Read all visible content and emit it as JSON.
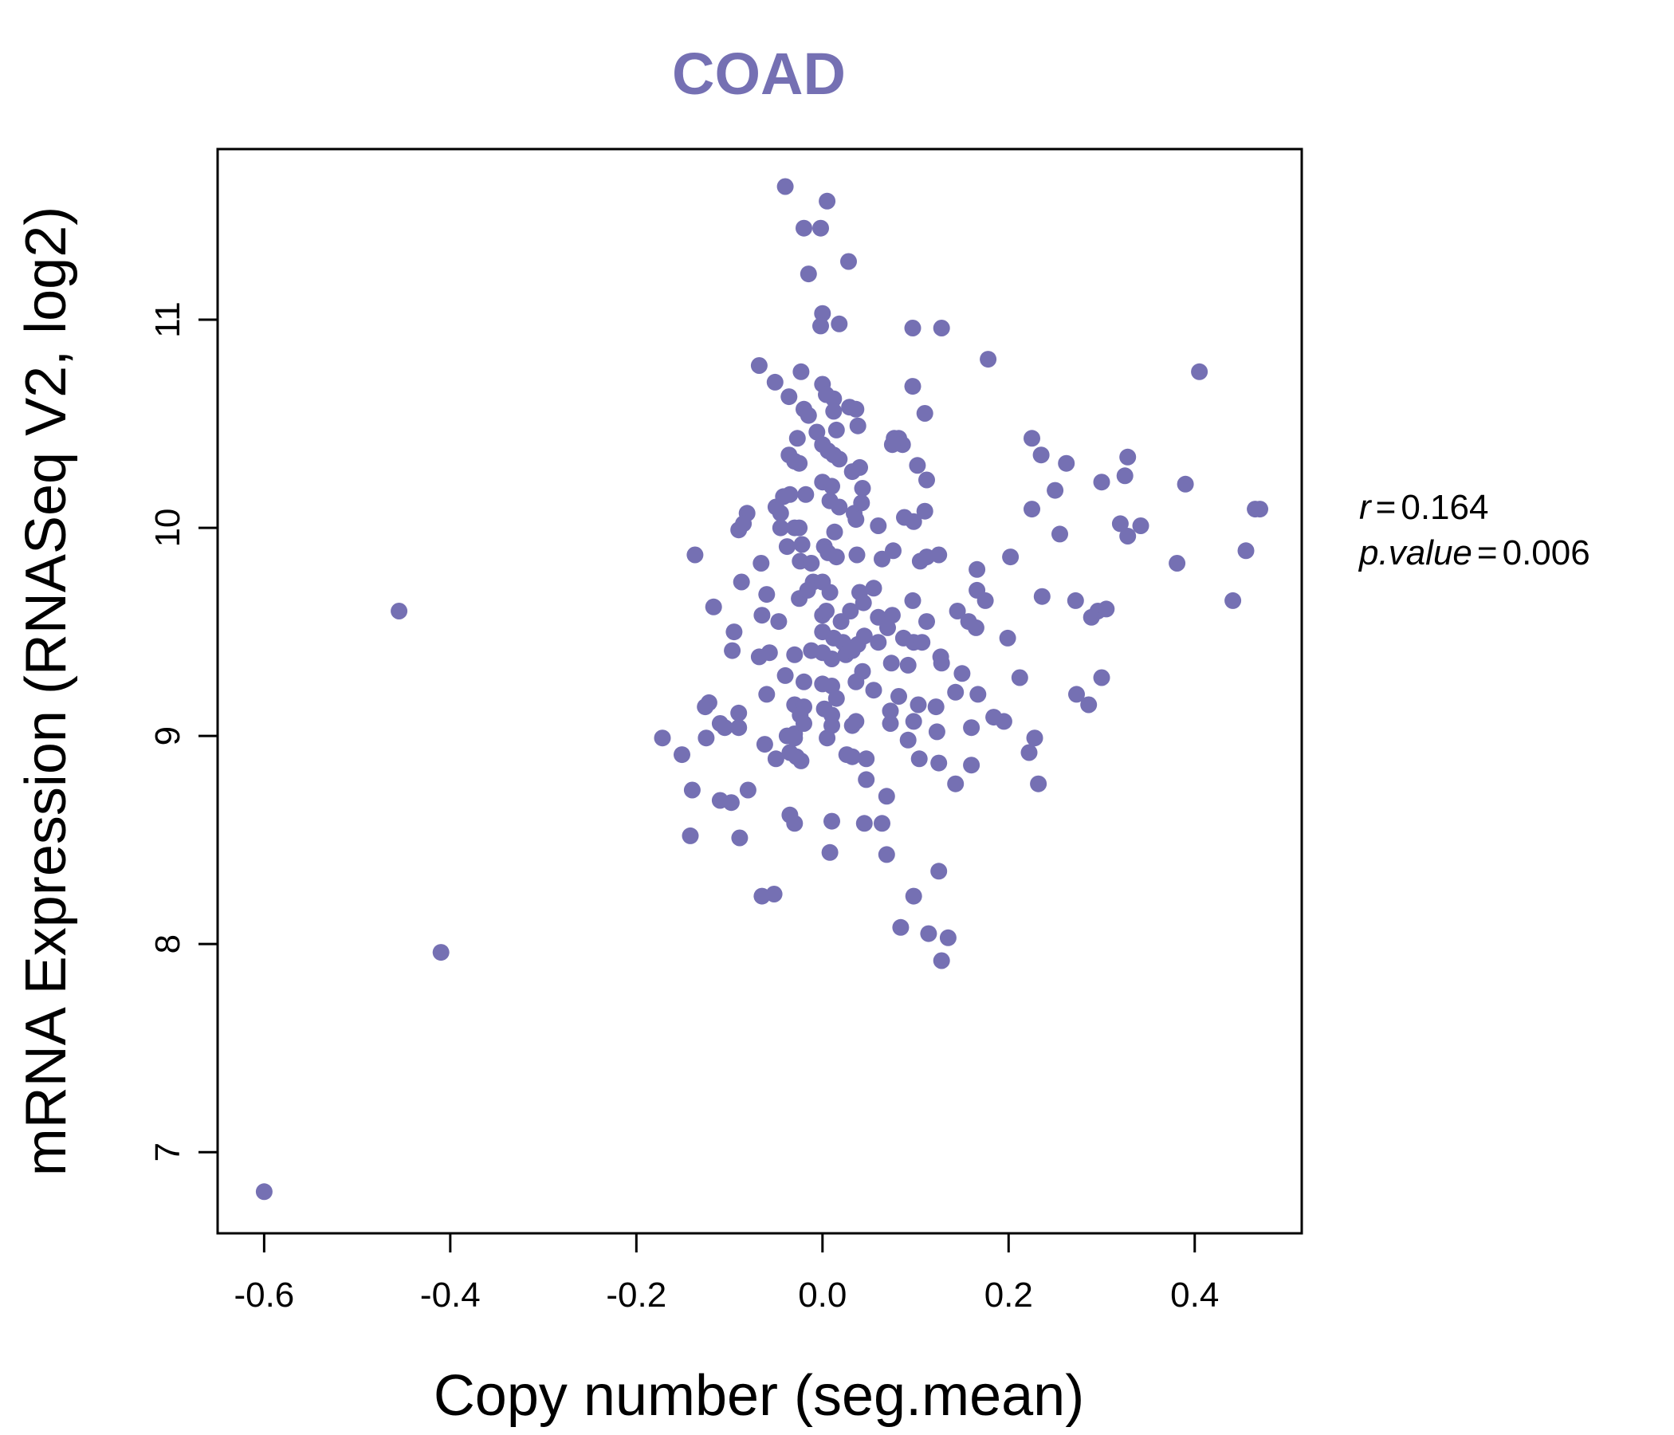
{
  "colors": {
    "point": "#7570b3",
    "axis": "#000000",
    "background": "#ffffff"
  },
  "chart_data": {
    "type": "scatter",
    "title": "COAD",
    "xlabel": "Copy number (seg.mean)",
    "ylabel": "mRNA Expression (RNASeq V2, log2)",
    "xlim": [
      -0.65,
      0.515
    ],
    "ylim": [
      6.61,
      11.82
    ],
    "x_ticks": [
      -0.6,
      -0.4,
      -0.2,
      0.0,
      0.2,
      0.4
    ],
    "x_tick_labels": [
      "-0.6",
      "-0.4",
      "-0.2",
      "0.0",
      "0.2",
      "0.4"
    ],
    "y_ticks": [
      7,
      8,
      9,
      10,
      11
    ],
    "y_tick_labels": [
      "7",
      "8",
      "9",
      "10",
      "11"
    ],
    "stats": {
      "r_label": "r",
      "r_value": "0.164",
      "p_label": "p.value",
      "p_value": "0.006"
    },
    "points": [
      [
        -0.6,
        6.81
      ],
      [
        -0.455,
        9.6
      ],
      [
        -0.41,
        7.96
      ],
      [
        -0.04,
        11.64
      ],
      [
        0.005,
        11.57
      ],
      [
        -0.02,
        11.44
      ],
      [
        -0.002,
        11.44
      ],
      [
        0.028,
        11.28
      ],
      [
        -0.015,
        11.22
      ],
      [
        0.0,
        11.03
      ],
      [
        0.018,
        10.98
      ],
      [
        -0.002,
        10.97
      ],
      [
        0.097,
        10.96
      ],
      [
        0.128,
        10.96
      ],
      [
        0.178,
        10.81
      ],
      [
        -0.068,
        10.78
      ],
      [
        -0.023,
        10.75
      ],
      [
        -0.051,
        10.7
      ],
      [
        0.0,
        10.69
      ],
      [
        0.097,
        10.68
      ],
      [
        -0.036,
        10.63
      ],
      [
        0.012,
        10.62
      ],
      [
        0.004,
        10.64
      ],
      [
        0.029,
        10.58
      ],
      [
        0.036,
        10.57
      ],
      [
        -0.02,
        10.57
      ],
      [
        0.012,
        10.56
      ],
      [
        -0.015,
        10.54
      ],
      [
        0.11,
        10.55
      ],
      [
        0.038,
        10.49
      ],
      [
        0.015,
        10.47
      ],
      [
        -0.006,
        10.46
      ],
      [
        0.077,
        10.43
      ],
      [
        0.082,
        10.43
      ],
      [
        0.086,
        10.4
      ],
      [
        0.075,
        10.4
      ],
      [
        -0.027,
        10.43
      ],
      [
        0.0,
        10.4
      ],
      [
        0.006,
        10.37
      ],
      [
        0.012,
        10.35
      ],
      [
        0.018,
        10.33
      ],
      [
        -0.036,
        10.35
      ],
      [
        -0.025,
        10.31
      ],
      [
        -0.03,
        10.32
      ],
      [
        0.04,
        10.29
      ],
      [
        0.032,
        10.27
      ],
      [
        0.102,
        10.3
      ],
      [
        0.112,
        10.23
      ],
      [
        0.0,
        10.22
      ],
      [
        0.01,
        10.2
      ],
      [
        0.043,
        10.19
      ],
      [
        -0.018,
        10.16
      ],
      [
        -0.035,
        10.16
      ],
      [
        -0.042,
        10.15
      ],
      [
        -0.05,
        10.1
      ],
      [
        -0.045,
        10.07
      ],
      [
        0.008,
        10.13
      ],
      [
        0.018,
        10.1
      ],
      [
        0.034,
        10.07
      ],
      [
        0.042,
        10.12
      ],
      [
        0.11,
        10.08
      ],
      [
        0.036,
        10.04
      ],
      [
        0.06,
        10.01
      ],
      [
        0.088,
        10.05
      ],
      [
        0.098,
        10.03
      ],
      [
        -0.081,
        10.07
      ],
      [
        -0.085,
        10.02
      ],
      [
        -0.09,
        9.99
      ],
      [
        -0.045,
        10.0
      ],
      [
        -0.03,
        10.0
      ],
      [
        -0.025,
        10.0
      ],
      [
        0.013,
        9.98
      ],
      [
        0.002,
        9.91
      ],
      [
        -0.038,
        9.91
      ],
      [
        -0.022,
        9.92
      ],
      [
        0.006,
        9.88
      ],
      [
        0.015,
        9.86
      ],
      [
        0.037,
        9.87
      ],
      [
        0.064,
        9.85
      ],
      [
        0.076,
        9.89
      ],
      [
        0.105,
        9.84
      ],
      [
        0.112,
        9.86
      ],
      [
        0.125,
        9.87
      ],
      [
        -0.137,
        9.87
      ],
      [
        -0.066,
        9.83
      ],
      [
        -0.024,
        9.84
      ],
      [
        -0.012,
        9.83
      ],
      [
        -0.01,
        9.74
      ],
      [
        0.0,
        9.74
      ],
      [
        -0.087,
        9.74
      ],
      [
        -0.06,
        9.68
      ],
      [
        -0.025,
        9.66
      ],
      [
        -0.016,
        9.7
      ],
      [
        0.008,
        9.69
      ],
      [
        0.04,
        9.69
      ],
      [
        0.055,
        9.71
      ],
      [
        0.097,
        9.65
      ],
      [
        0.166,
        9.8
      ],
      [
        0.166,
        9.7
      ],
      [
        0.175,
        9.65
      ],
      [
        0.202,
        9.86
      ],
      [
        -0.117,
        9.62
      ],
      [
        -0.065,
        9.58
      ],
      [
        -0.047,
        9.55
      ],
      [
        0.0,
        9.58
      ],
      [
        0.004,
        9.6
      ],
      [
        0.02,
        9.55
      ],
      [
        0.03,
        9.6
      ],
      [
        0.044,
        9.64
      ],
      [
        0.06,
        9.57
      ],
      [
        0.075,
        9.58
      ],
      [
        0.07,
        9.52
      ],
      [
        0.112,
        9.55
      ],
      [
        0.145,
        9.6
      ],
      [
        0.157,
        9.55
      ],
      [
        0.165,
        9.52
      ],
      [
        0.199,
        9.47
      ],
      [
        -0.095,
        9.5
      ],
      [
        0.0,
        9.5
      ],
      [
        0.012,
        9.47
      ],
      [
        0.022,
        9.45
      ],
      [
        0.038,
        9.44
      ],
      [
        0.045,
        9.48
      ],
      [
        0.06,
        9.45
      ],
      [
        0.087,
        9.47
      ],
      [
        0.098,
        9.45
      ],
      [
        0.107,
        9.45
      ],
      [
        -0.097,
        9.41
      ],
      [
        -0.068,
        9.38
      ],
      [
        -0.057,
        9.4
      ],
      [
        -0.03,
        9.39
      ],
      [
        -0.012,
        9.41
      ],
      [
        0.0,
        9.4
      ],
      [
        0.01,
        9.37
      ],
      [
        0.025,
        9.39
      ],
      [
        0.032,
        9.41
      ],
      [
        0.074,
        9.35
      ],
      [
        0.092,
        9.34
      ],
      [
        0.127,
        9.38
      ],
      [
        0.128,
        9.35
      ],
      [
        0.15,
        9.3
      ],
      [
        0.212,
        9.28
      ],
      [
        0.3,
        9.28
      ],
      [
        -0.04,
        9.29
      ],
      [
        -0.02,
        9.26
      ],
      [
        0.0,
        9.25
      ],
      [
        0.01,
        9.24
      ],
      [
        0.036,
        9.26
      ],
      [
        0.043,
        9.31
      ],
      [
        0.055,
        9.22
      ],
      [
        0.082,
        9.19
      ],
      [
        0.143,
        9.21
      ],
      [
        0.167,
        9.2
      ],
      [
        0.273,
        9.2
      ],
      [
        -0.06,
        9.2
      ],
      [
        -0.122,
        9.16
      ],
      [
        -0.126,
        9.14
      ],
      [
        -0.03,
        9.15
      ],
      [
        -0.02,
        9.14
      ],
      [
        -0.024,
        9.1
      ],
      [
        0.002,
        9.13
      ],
      [
        0.01,
        9.1
      ],
      [
        0.015,
        9.18
      ],
      [
        0.073,
        9.12
      ],
      [
        0.103,
        9.15
      ],
      [
        0.122,
        9.14
      ],
      [
        0.286,
        9.15
      ],
      [
        -0.11,
        9.06
      ],
      [
        -0.105,
        9.04
      ],
      [
        -0.09,
        9.11
      ],
      [
        -0.09,
        9.04
      ],
      [
        -0.02,
        9.06
      ],
      [
        -0.03,
        9.01
      ],
      [
        0.01,
        9.05
      ],
      [
        0.032,
        9.05
      ],
      [
        0.036,
        9.07
      ],
      [
        0.073,
        9.06
      ],
      [
        0.098,
        9.07
      ],
      [
        0.123,
        9.02
      ],
      [
        0.16,
        9.04
      ],
      [
        0.184,
        9.09
      ],
      [
        0.195,
        9.07
      ],
      [
        -0.125,
        8.99
      ],
      [
        -0.172,
        8.99
      ],
      [
        -0.038,
        9.0
      ],
      [
        -0.03,
        8.99
      ],
      [
        0.005,
        8.99
      ],
      [
        0.092,
        8.98
      ],
      [
        0.228,
        8.99
      ],
      [
        -0.151,
        8.91
      ],
      [
        -0.062,
        8.96
      ],
      [
        -0.035,
        8.92
      ],
      [
        -0.028,
        8.9
      ],
      [
        -0.05,
        8.89
      ],
      [
        -0.023,
        8.88
      ],
      [
        0.026,
        8.91
      ],
      [
        0.032,
        8.9
      ],
      [
        0.047,
        8.89
      ],
      [
        0.104,
        8.89
      ],
      [
        0.125,
        8.87
      ],
      [
        0.16,
        8.86
      ],
      [
        0.222,
        8.92
      ],
      [
        -0.14,
        8.74
      ],
      [
        -0.08,
        8.74
      ],
      [
        -0.11,
        8.69
      ],
      [
        -0.098,
        8.68
      ],
      [
        0.047,
        8.79
      ],
      [
        0.069,
        8.71
      ],
      [
        0.143,
        8.77
      ],
      [
        0.232,
        8.77
      ],
      [
        -0.035,
        8.62
      ],
      [
        -0.03,
        8.58
      ],
      [
        0.01,
        8.59
      ],
      [
        0.045,
        8.58
      ],
      [
        0.064,
        8.58
      ],
      [
        -0.142,
        8.52
      ],
      [
        -0.089,
        8.51
      ],
      [
        0.008,
        8.44
      ],
      [
        0.069,
        8.43
      ],
      [
        0.125,
        8.35
      ],
      [
        -0.065,
        8.23
      ],
      [
        -0.052,
        8.24
      ],
      [
        0.098,
        8.23
      ],
      [
        0.084,
        8.08
      ],
      [
        0.114,
        8.05
      ],
      [
        0.135,
        8.03
      ],
      [
        0.128,
        7.92
      ],
      [
        0.225,
        10.43
      ],
      [
        0.235,
        10.35
      ],
      [
        0.262,
        10.31
      ],
      [
        0.25,
        10.18
      ],
      [
        0.3,
        10.22
      ],
      [
        0.328,
        10.34
      ],
      [
        0.325,
        10.25
      ],
      [
        0.225,
        10.09
      ],
      [
        0.255,
        9.97
      ],
      [
        0.32,
        10.02
      ],
      [
        0.328,
        9.96
      ],
      [
        0.342,
        10.01
      ],
      [
        0.39,
        10.21
      ],
      [
        0.405,
        10.75
      ],
      [
        0.381,
        9.83
      ],
      [
        0.465,
        10.09
      ],
      [
        0.47,
        10.09
      ],
      [
        0.455,
        9.89
      ],
      [
        0.441,
        9.65
      ],
      [
        0.236,
        9.67
      ],
      [
        0.272,
        9.65
      ],
      [
        0.289,
        9.57
      ],
      [
        0.296,
        9.6
      ],
      [
        0.305,
        9.61
      ]
    ]
  }
}
